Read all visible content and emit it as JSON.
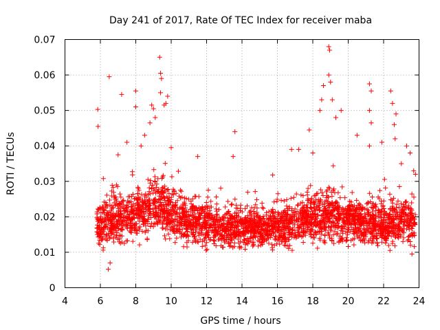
{
  "chart_data": {
    "type": "scatter",
    "title": "Day 241 of 2017, Rate Of TEC Index for receiver maba",
    "xlabel": "GPS time / hours",
    "ylabel": "ROTI / TECUs",
    "xlim": [
      4,
      24
    ],
    "ylim": [
      0,
      0.07
    ],
    "grid": true,
    "marker": "+",
    "series_color": "#ff0000",
    "x_tick_labels": [
      "4",
      "6",
      "8",
      "10",
      "12",
      "14",
      "16",
      "18",
      "20",
      "22",
      "24"
    ],
    "y_tick_labels": [
      "0",
      "0.01",
      "0.02",
      "0.03",
      "0.04",
      "0.05",
      "0.06",
      "0.07"
    ],
    "profile": [
      [
        5.8,
        0.0175,
        0.008
      ],
      [
        6.5,
        0.019,
        0.009
      ],
      [
        7.5,
        0.0195,
        0.01
      ],
      [
        8.5,
        0.022,
        0.011
      ],
      [
        9.3,
        0.024,
        0.013
      ],
      [
        10.0,
        0.0205,
        0.01
      ],
      [
        11.0,
        0.019,
        0.009
      ],
      [
        12.0,
        0.018,
        0.008
      ],
      [
        13.0,
        0.017,
        0.008
      ],
      [
        14.0,
        0.0175,
        0.008
      ],
      [
        15.0,
        0.017,
        0.0075
      ],
      [
        16.0,
        0.017,
        0.008
      ],
      [
        17.0,
        0.0185,
        0.009
      ],
      [
        18.0,
        0.02,
        0.01
      ],
      [
        19.0,
        0.02,
        0.011
      ],
      [
        20.0,
        0.019,
        0.009
      ],
      [
        21.0,
        0.0185,
        0.009
      ],
      [
        22.0,
        0.018,
        0.009
      ],
      [
        23.0,
        0.0185,
        0.009
      ],
      [
        23.8,
        0.019,
        0.009
      ]
    ],
    "points": [
      [
        5.85,
        0.0503
      ],
      [
        5.87,
        0.0455
      ],
      [
        6.5,
        0.0595
      ],
      [
        6.45,
        0.0052
      ],
      [
        6.55,
        0.007
      ],
      [
        7.0,
        0.0375
      ],
      [
        7.2,
        0.0545
      ],
      [
        7.5,
        0.041
      ],
      [
        8.0,
        0.0555
      ],
      [
        8.0,
        0.051
      ],
      [
        8.3,
        0.04
      ],
      [
        8.5,
        0.043
      ],
      [
        8.8,
        0.0465
      ],
      [
        8.9,
        0.0515
      ],
      [
        9.0,
        0.0505
      ],
      [
        9.1,
        0.048
      ],
      [
        9.35,
        0.065
      ],
      [
        9.4,
        0.0605
      ],
      [
        9.45,
        0.059
      ],
      [
        9.4,
        0.055
      ],
      [
        9.6,
        0.0515
      ],
      [
        9.7,
        0.052
      ],
      [
        9.8,
        0.054
      ],
      [
        10.0,
        0.0395
      ],
      [
        11.5,
        0.037
      ],
      [
        13.5,
        0.037
      ],
      [
        13.6,
        0.044
      ],
      [
        16.8,
        0.039
      ],
      [
        17.2,
        0.039
      ],
      [
        17.8,
        0.0445
      ],
      [
        18.0,
        0.038
      ],
      [
        18.4,
        0.05
      ],
      [
        18.5,
        0.053
      ],
      [
        18.6,
        0.057
      ],
      [
        18.9,
        0.068
      ],
      [
        18.95,
        0.067
      ],
      [
        18.9,
        0.06
      ],
      [
        19.0,
        0.058
      ],
      [
        19.1,
        0.053
      ],
      [
        19.3,
        0.048
      ],
      [
        19.6,
        0.05
      ],
      [
        20.5,
        0.043
      ],
      [
        21.2,
        0.0575
      ],
      [
        21.3,
        0.0555
      ],
      [
        21.2,
        0.05
      ],
      [
        21.3,
        0.0465
      ],
      [
        21.2,
        0.04
      ],
      [
        21.9,
        0.041
      ],
      [
        22.4,
        0.0555
      ],
      [
        22.5,
        0.052
      ],
      [
        22.7,
        0.049
      ],
      [
        22.6,
        0.046
      ],
      [
        22.65,
        0.042
      ],
      [
        23.0,
        0.035
      ],
      [
        23.3,
        0.04
      ],
      [
        23.5,
        0.038
      ],
      [
        23.7,
        0.033
      ],
      [
        23.8,
        0.032
      ],
      [
        23.6,
        0.0095
      ],
      [
        23.5,
        0.013
      ]
    ]
  }
}
